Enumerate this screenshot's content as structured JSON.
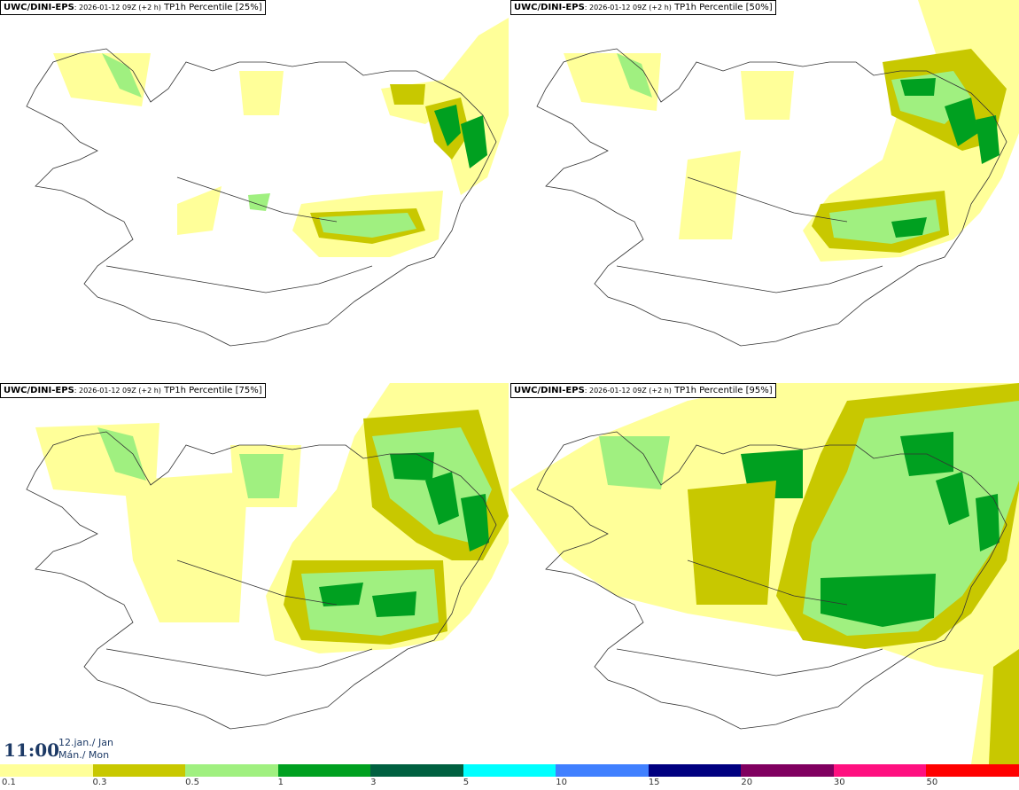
{
  "panels": [
    {
      "model": "UWC/DINI-EPS",
      "run": ": 2026-01-12 09Z (+2 h)",
      "product": " TP1h Percentile [25%]"
    },
    {
      "model": "UWC/DINI-EPS",
      "run": ": 2026-01-12 09Z (+2 h)",
      "product": " TP1h Percentile [50%]"
    },
    {
      "model": "UWC/DINI-EPS",
      "run": ": 2026-01-12 09Z (+2 h)",
      "product": " TP1h Percentile [75%]"
    },
    {
      "model": "UWC/DINI-EPS",
      "run": ": 2026-01-12 09Z (+2 h)",
      "product": " TP1h Percentile [95%]"
    }
  ],
  "valid_time": {
    "time": "11:00",
    "date_line1": "12.jan./ Jan",
    "date_line2": "Mán./ Mon"
  },
  "legend": {
    "labels": [
      "0.1",
      "0.3",
      "0.5",
      "1",
      "3",
      "5",
      "10",
      "15",
      "20",
      "30",
      "50"
    ],
    "colors": [
      "#ffff99",
      "#c8c800",
      "#a0f080",
      "#00a020",
      "#006040",
      "#00ffff",
      "#4080ff",
      "#000080",
      "#800060",
      "#ff1080",
      "#ff0000"
    ]
  }
}
